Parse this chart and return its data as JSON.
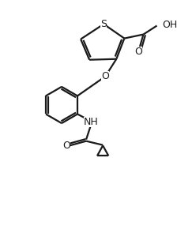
{
  "background": "#ffffff",
  "line_color": "#1a1a1a",
  "line_width": 1.6,
  "fig_width": 2.24,
  "fig_height": 2.9,
  "dpi": 100,
  "xlim": [
    0,
    10
  ],
  "ylim": [
    0,
    13
  ]
}
